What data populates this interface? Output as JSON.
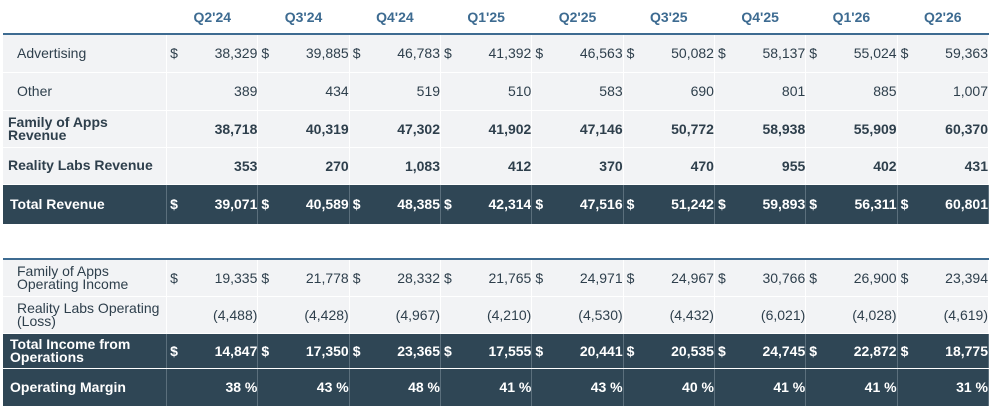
{
  "quarters": [
    "Q2'24",
    "Q3'24",
    "Q4'24",
    "Q1'25",
    "Q2'25",
    "Q3'25",
    "Q4'25",
    "Q1'26",
    "Q2'26"
  ],
  "revenue": {
    "advertising": {
      "label": "Advertising",
      "values": [
        "38,329",
        "39,885",
        "46,783",
        "41,392",
        "46,563",
        "50,082",
        "58,137",
        "55,024",
        "59,363"
      ]
    },
    "other": {
      "label": "Other",
      "values": [
        "389",
        "434",
        "519",
        "510",
        "583",
        "690",
        "801",
        "885",
        "1,007"
      ]
    },
    "family_of_apps": {
      "label": "Family of Apps Revenue",
      "values": [
        "38,718",
        "40,319",
        "47,302",
        "41,902",
        "47,146",
        "50,772",
        "58,938",
        "55,909",
        "60,370"
      ]
    },
    "reality_labs": {
      "label": "Reality Labs Revenue",
      "values": [
        "353",
        "270",
        "1,083",
        "412",
        "370",
        "470",
        "955",
        "402",
        "431"
      ]
    },
    "total": {
      "label": "Total Revenue",
      "values": [
        "39,071",
        "40,589",
        "48,385",
        "42,314",
        "47,516",
        "51,242",
        "59,893",
        "56,311",
        "60,801"
      ]
    }
  },
  "operating": {
    "foa_income": {
      "label": "Family of Apps Operating Income",
      "values": [
        "19,335",
        "21,778",
        "28,332",
        "21,765",
        "24,971",
        "24,967",
        "30,766",
        "26,900",
        "23,394"
      ]
    },
    "rl_loss": {
      "label": "Reality Labs Operating (Loss)",
      "values": [
        "(4,488)",
        "(4,428)",
        "(4,967)",
        "(4,210)",
        "(4,530)",
        "(4,432)",
        "(6,021)",
        "(4,028)",
        "(4,619)"
      ]
    },
    "total_income": {
      "label": "Total Income from Operations",
      "values": [
        "14,847",
        "17,350",
        "23,365",
        "17,555",
        "20,441",
        "20,535",
        "24,745",
        "22,872",
        "18,775"
      ]
    },
    "margin": {
      "label": "Operating Margin",
      "values": [
        "38 %",
        "43 %",
        "48 %",
        "41 %",
        "43 %",
        "40 %",
        "41 %",
        "41 %",
        "31 %"
      ]
    }
  },
  "currency_symbol": "$"
}
